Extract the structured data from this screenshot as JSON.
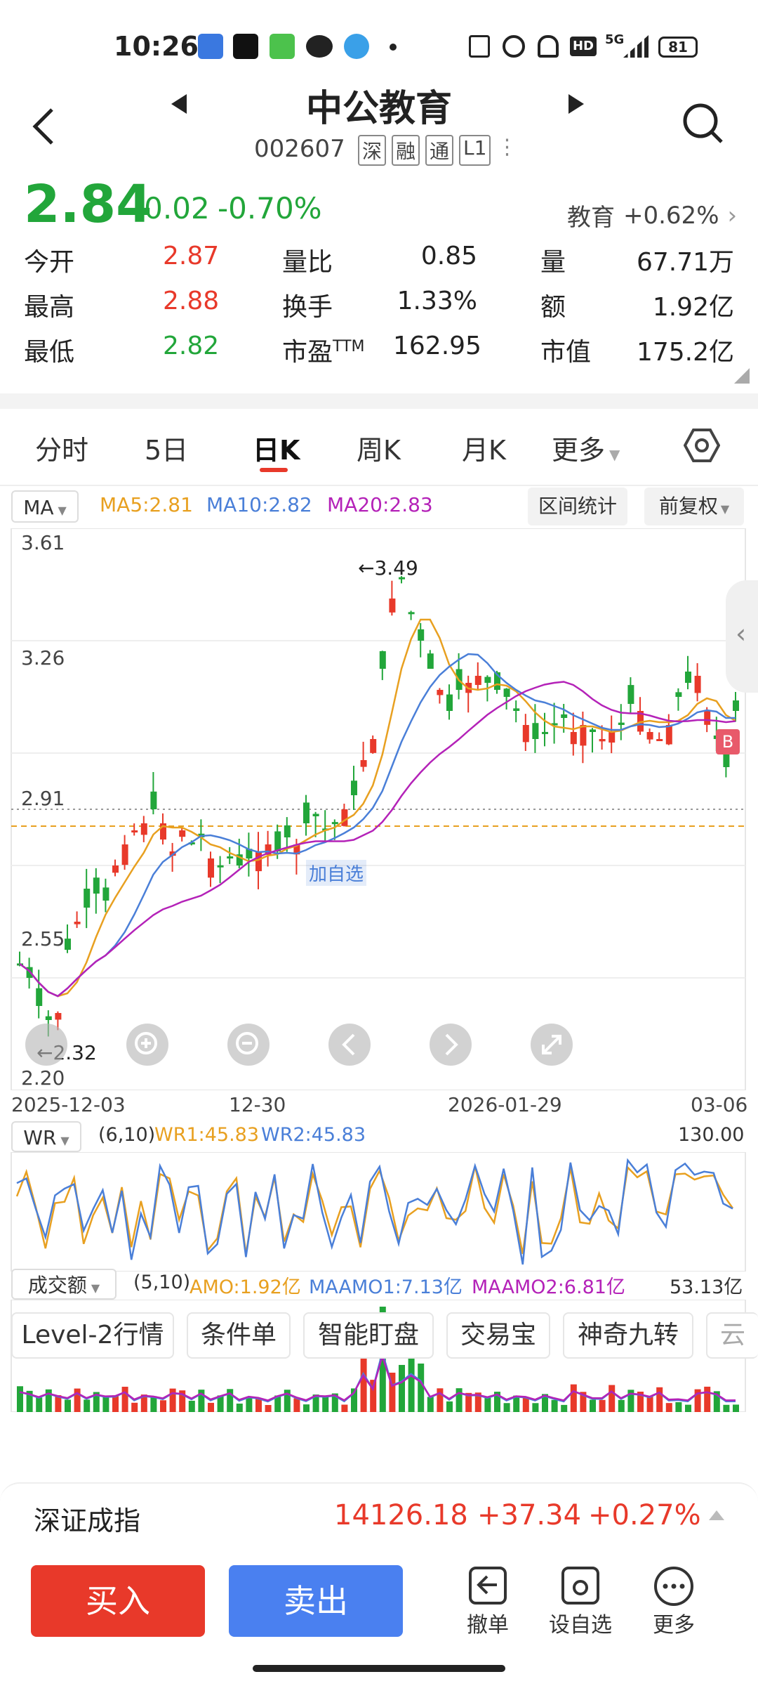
{
  "status_bar": {
    "time": "10:26",
    "network": "5G",
    "battery": "81"
  },
  "header": {
    "title": "中公教育",
    "code": "002607",
    "tags": [
      "深",
      "融",
      "通",
      "L1"
    ]
  },
  "quote": {
    "price": "2.84",
    "change": "-0.02",
    "change_pct": "-0.70%",
    "sector": "教育",
    "sector_change": "+0.62%"
  },
  "stats": [
    [
      {
        "label": "今开",
        "value": "2.87"
      },
      {
        "label": "量比",
        "value": "0.85"
      },
      {
        "label": "量",
        "value": "67.71万"
      }
    ],
    [
      {
        "label": "最高",
        "value": "2.88"
      },
      {
        "label": "换手",
        "value": "1.33%"
      },
      {
        "label": "额",
        "value": "1.92亿"
      }
    ],
    [
      {
        "label": "最低",
        "value": "2.82"
      },
      {
        "label": "市盈",
        "sup": "TTM",
        "value": "162.95"
      },
      {
        "label": "市值",
        "value": "175.2亿"
      }
    ]
  ],
  "tabs": [
    "分时",
    "5日",
    "日K",
    "周K",
    "月K",
    "更多"
  ],
  "active_tab": "日K",
  "ma_bar": {
    "selector": "MA",
    "ma5": "MA5:2.81",
    "ma10": "MA10:2.82",
    "ma20": "MA20:2.83",
    "range_btn": "区间统计",
    "adjust_btn": "前复权"
  },
  "price_axis": [
    "3.61",
    "3.26",
    "2.91",
    "2.55",
    "2.20"
  ],
  "annotations": {
    "high": "←3.49",
    "low": "←2.32",
    "add_watch": "加自选",
    "badge": "B"
  },
  "dates": [
    "2025-12-03",
    "12-30",
    "2026-01-29",
    "03-06"
  ],
  "wr_bar": {
    "selector": "WR",
    "params": "(6,10)",
    "wr1": "WR1:45.83",
    "wr2": "WR2:45.83",
    "max": "130.00"
  },
  "amo_bar": {
    "selector": "成交额",
    "params": "(5,10)",
    "amo": "AMO:1.92亿",
    "maamo1": "MAAMO1:7.13亿",
    "maamo2": "MAAMO2:6.81亿",
    "max": "53.13亿"
  },
  "functions": [
    "Level-2行情",
    "条件单",
    "智能盯盘",
    "交易宝",
    "神奇九转",
    "云"
  ],
  "index_bar": {
    "name": "深证成指",
    "value": "14126.18",
    "change": "+37.34",
    "change_pct": "+0.27%"
  },
  "bottom": {
    "buy": "买入",
    "sell": "卖出",
    "cancel": "撤单",
    "watch": "设自选",
    "more": "更多"
  },
  "colors": {
    "up": "#e8392a",
    "down": "#22a63a",
    "ma5": "#e8a020",
    "ma10": "#4a7fd8",
    "ma20": "#b422b8",
    "buy": "#e8392a",
    "sell": "#4a80f0"
  }
}
